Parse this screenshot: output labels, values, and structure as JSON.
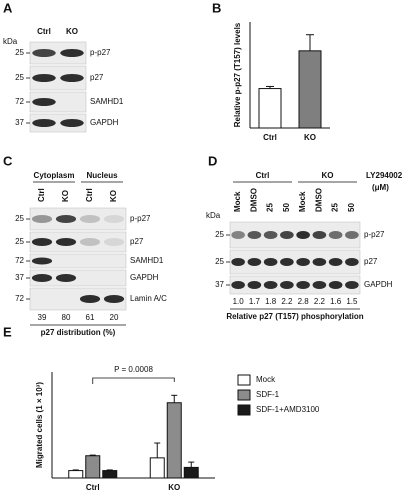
{
  "blots": [
    {
      "panel": "A",
      "kda": "kDa",
      "lanes": [
        "Ctrl",
        "KO"
      ],
      "rows": [
        {
          "mw": "25",
          "label": "p-p27"
        },
        {
          "mw": "25",
          "label": "p27"
        },
        {
          "mw": "72",
          "label": "SAMHD1"
        },
        {
          "mw": "37",
          "label": "GAPDH"
        }
      ]
    },
    {
      "panel": "C",
      "groups": [
        "Cytoplasm",
        "Nucleus"
      ],
      "lanes": [
        "Ctrl",
        "KO",
        "Ctrl",
        "KO"
      ],
      "rows": [
        {
          "mw": "25",
          "label": "p-p27"
        },
        {
          "mw": "25",
          "label": "p27"
        },
        {
          "mw": "72",
          "label": "SAMHD1"
        },
        {
          "mw": "37",
          "label": "GAPDH"
        },
        {
          "mw": "72",
          "label": "Lamin A/C"
        }
      ],
      "numbers": [
        "39",
        "80",
        "61",
        "20"
      ],
      "caption": "p27 distribution (%)"
    },
    {
      "panel": "D",
      "kda": "kDa",
      "groups": [
        "Ctrl",
        "KO"
      ],
      "treatment": "LY294002",
      "treatment_unit": "(μM)",
      "lanes": [
        "Mock",
        "DMSO",
        "25",
        "50",
        "Mock",
        "DMSO",
        "25",
        "50"
      ],
      "rows": [
        {
          "mw": "25",
          "label": "p-p27"
        },
        {
          "mw": "25",
          "label": "p27"
        },
        {
          "mw": "37",
          "label": "GAPDH"
        }
      ],
      "numbers": [
        "1.0",
        "1.7",
        "1.8",
        "2.2",
        "2.8",
        "2.2",
        "1.6",
        "1.5"
      ],
      "caption": "Relative p27 (T157) phosphorylation"
    }
  ],
  "chart_data": [
    {
      "type": "bar",
      "panel": "B",
      "y_label": "Relative p-p27 (T157) levels",
      "categories": [
        "Ctrl",
        "KO"
      ],
      "values": [
        0.93,
        1.82
      ],
      "errors": [
        0.05,
        0.38
      ],
      "colors": [
        "#ffffff",
        "#7f7f7f"
      ],
      "ylim": [
        0,
        2.5
      ]
    },
    {
      "type": "grouped_bar",
      "panel": "E",
      "y_label": "Migrated cells (1 × 10³)",
      "categories": [
        "Ctrl",
        "KO"
      ],
      "series": [
        {
          "name": "Mock",
          "color": "#ffffff",
          "values": [
            3.5,
            9.5
          ],
          "errors": [
            0.3,
            7
          ]
        },
        {
          "name": "SDF-1",
          "color": "#8c8c8c",
          "values": [
            10.5,
            35.5
          ],
          "errors": [
            0.3,
            3.5
          ]
        },
        {
          "name": "SDF-1+AMD3100",
          "color": "#1a1a1a",
          "values": [
            3.5,
            5
          ],
          "errors": [
            0.3,
            2.5
          ]
        }
      ],
      "ylim": [
        0,
        50
      ],
      "annotation": "P = 0.0008"
    }
  ]
}
